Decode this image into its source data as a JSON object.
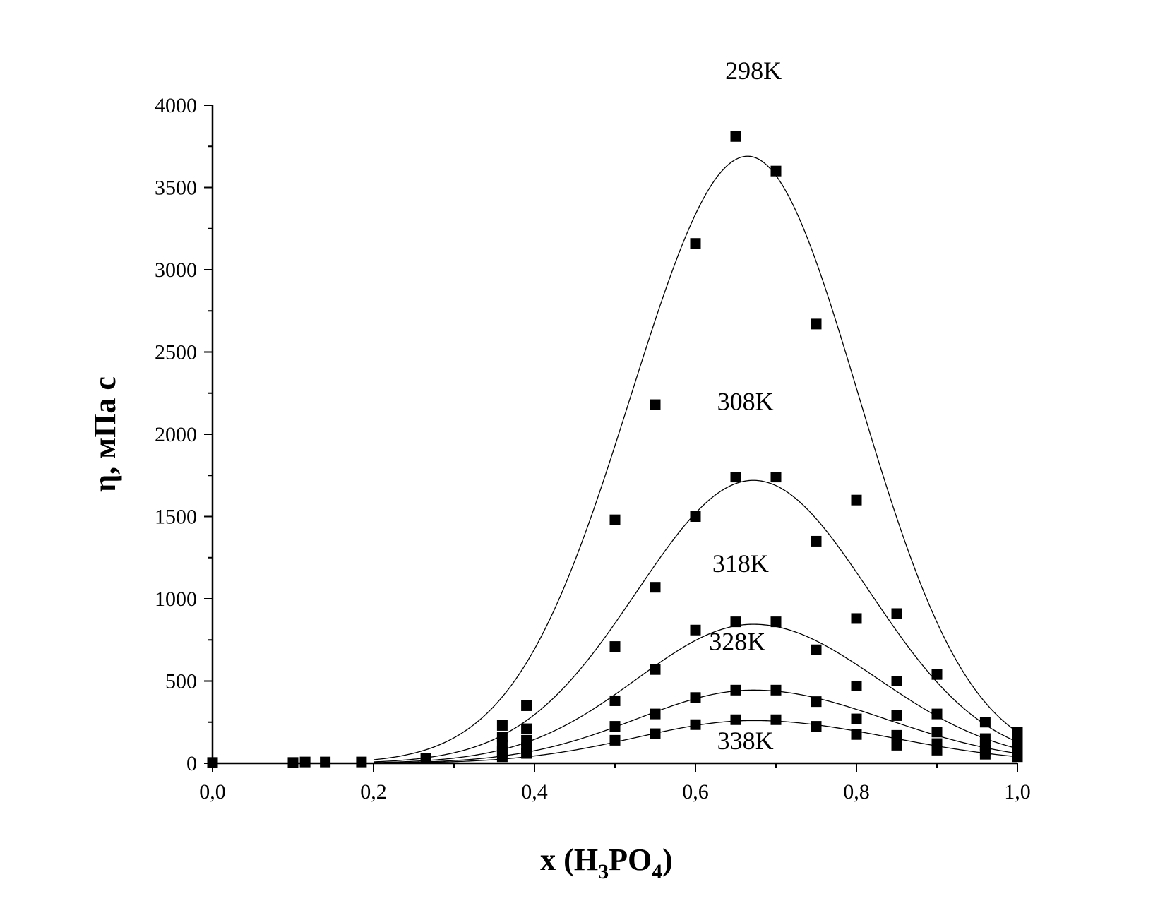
{
  "chart_data": {
    "type": "scatter",
    "title": "",
    "xlabel": "x (H3PO4)",
    "xlabel_parts": {
      "prefix": "x (H",
      "sub1": "3",
      "mid": "PO",
      "sub2": "4",
      "suffix": ")"
    },
    "ylabel": "η, мПа с",
    "xlim": [
      0.0,
      1.0
    ],
    "ylim": [
      0,
      4000
    ],
    "x_ticks": [
      "0,0",
      "0,2",
      "0,4",
      "0,6",
      "0,8",
      "1,0"
    ],
    "x_tick_values": [
      0.0,
      0.2,
      0.4,
      0.6,
      0.8,
      1.0
    ],
    "y_ticks": [
      "0",
      "500",
      "1000",
      "1500",
      "2000",
      "2500",
      "3000",
      "3500",
      "4000"
    ],
    "y_tick_values": [
      0,
      500,
      1000,
      1500,
      2000,
      2500,
      3000,
      3500,
      4000
    ],
    "marker": "filled-square",
    "grid": false,
    "series": [
      {
        "name": "298K",
        "x": [
          0.0,
          0.1,
          0.115,
          0.14,
          0.185,
          0.265,
          0.36,
          0.39,
          0.5,
          0.55,
          0.6,
          0.65,
          0.7,
          0.75,
          0.8,
          0.85,
          0.9,
          0.96,
          1.0
        ],
        "y": [
          5,
          5,
          8,
          8,
          8,
          30,
          230,
          350,
          1480,
          2180,
          3160,
          3810,
          3600,
          2670,
          1600,
          910,
          540,
          250,
          190
        ],
        "fit": {
          "peak_x": 0.665,
          "peak_y": 3690
        }
      },
      {
        "name": "308K",
        "x": [
          0.36,
          0.39,
          0.5,
          0.55,
          0.6,
          0.65,
          0.7,
          0.75,
          0.8,
          0.85,
          0.9,
          0.96,
          1.0
        ],
        "y": [
          160,
          210,
          710,
          1070,
          1500,
          1740,
          1740,
          1350,
          880,
          500,
          300,
          150,
          130
        ],
        "fit": {
          "peak_x": 0.672,
          "peak_y": 1720
        }
      },
      {
        "name": "318K",
        "x": [
          0.36,
          0.39,
          0.5,
          0.55,
          0.6,
          0.65,
          0.7,
          0.75,
          0.8,
          0.85,
          0.9,
          0.96,
          1.0
        ],
        "y": [
          110,
          140,
          380,
          570,
          810,
          860,
          860,
          690,
          470,
          290,
          190,
          110,
          90
        ],
        "fit": {
          "peak_x": 0.672,
          "peak_y": 845
        }
      },
      {
        "name": "328K",
        "x": [
          0.36,
          0.39,
          0.5,
          0.55,
          0.6,
          0.65,
          0.7,
          0.75,
          0.8,
          0.85,
          0.9,
          0.96,
          1.0
        ],
        "y": [
          70,
          95,
          225,
          300,
          400,
          445,
          445,
          375,
          270,
          170,
          120,
          80,
          60
        ],
        "fit": {
          "peak_x": 0.672,
          "peak_y": 445
        }
      },
      {
        "name": "338K",
        "x": [
          0.36,
          0.39,
          0.5,
          0.55,
          0.6,
          0.65,
          0.7,
          0.75,
          0.8,
          0.85,
          0.9,
          0.96,
          1.0
        ],
        "y": [
          40,
          60,
          140,
          180,
          235,
          265,
          265,
          225,
          175,
          110,
          80,
          55,
          40
        ],
        "fit": {
          "peak_x": 0.672,
          "peak_y": 260
        }
      }
    ]
  }
}
